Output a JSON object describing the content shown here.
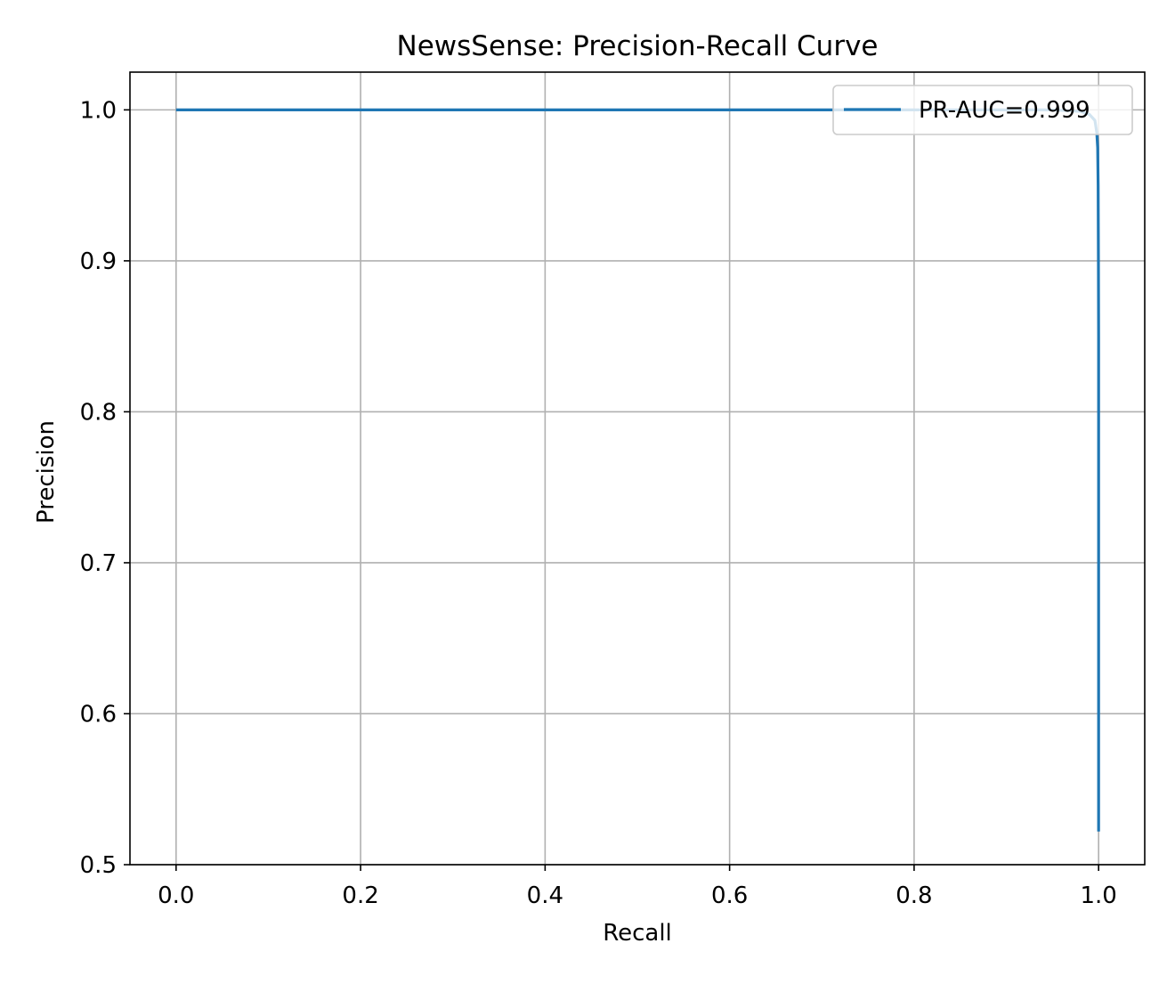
{
  "chart_data": {
    "type": "line",
    "title": "NewsSense: Precision-Recall Curve",
    "xlabel": "Recall",
    "ylabel": "Precision",
    "xlim": [
      -0.05,
      1.05
    ],
    "ylim": [
      0.5,
      1.025
    ],
    "x_ticks": [
      0.0,
      0.2,
      0.4,
      0.6,
      0.8,
      1.0
    ],
    "y_ticks": [
      0.5,
      0.6,
      0.7,
      0.8,
      0.9,
      1.0
    ],
    "x_tick_labels": [
      "0.0",
      "0.2",
      "0.4",
      "0.6",
      "0.8",
      "1.0"
    ],
    "y_tick_labels": [
      "0.5",
      "0.6",
      "0.7",
      "0.8",
      "0.9",
      "1.0"
    ],
    "grid": true,
    "legend_position": "top-right",
    "series": [
      {
        "name": "PR-AUC=0.999",
        "color": "#1f77b4",
        "x": [
          0.0,
          0.2,
          0.4,
          0.6,
          0.8,
          0.95,
          0.98,
          0.99,
          0.996,
          0.998,
          0.999,
          0.9995,
          0.9998,
          1.0,
          1.0,
          1.0,
          1.0
        ],
        "y": [
          1.0,
          1.0,
          1.0,
          1.0,
          1.0,
          1.0,
          0.999,
          0.997,
          0.993,
          0.985,
          0.975,
          0.95,
          0.9,
          0.85,
          0.75,
          0.6,
          0.522
        ]
      }
    ]
  }
}
